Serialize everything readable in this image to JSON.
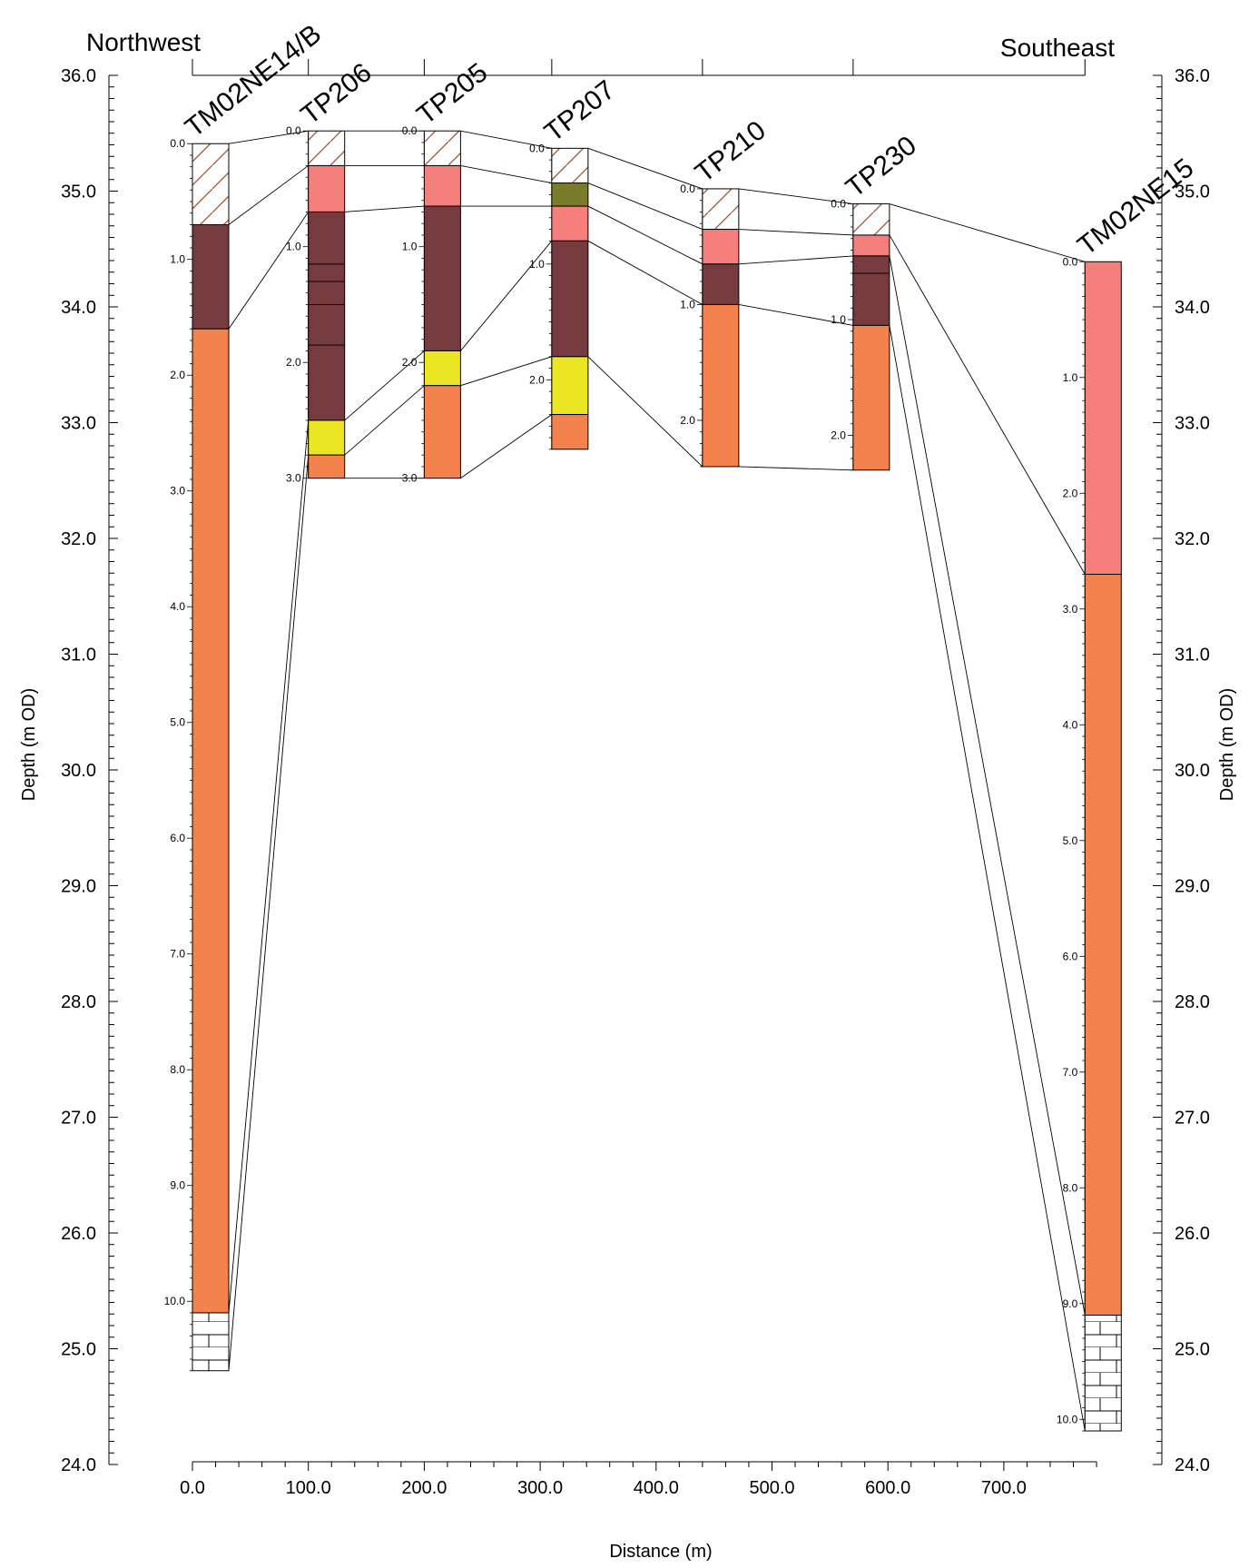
{
  "chart_data": {
    "type": "borehole-cross-section",
    "direction_left": "Northwest",
    "direction_right": "Southeast",
    "y_axis_label": "Depth (m OD)",
    "y_range": [
      24.0,
      36.0
    ],
    "y_ticks": [
      "36.0",
      "35.0",
      "34.0",
      "33.0",
      "32.0",
      "31.0",
      "30.0",
      "29.0",
      "28.0",
      "27.0",
      "26.0",
      "25.0",
      "24.0"
    ],
    "x_axis_label": "Distance (m)",
    "x_range": [
      0,
      780
    ],
    "x_ticks": [
      "0.0",
      "100.0",
      "200.0",
      "300.0",
      "400.0",
      "500.0",
      "600.0",
      "700.0"
    ],
    "colors": {
      "made_ground_hatch": "#a0522d",
      "pink": "#f47f7c",
      "maroon": "#763b3e",
      "orange": "#f4824c",
      "yellow": "#eae624",
      "olive": "#7b7b2c",
      "chalk": "#ffffff"
    },
    "boreholes": [
      {
        "name": "TM02NE14/B",
        "distance": 0,
        "top_elev": 35.41,
        "depth_ticks": [
          "0.0",
          "1.0",
          "2.0",
          "3.0",
          "4.0",
          "5.0",
          "6.0",
          "7.0",
          "8.0",
          "9.0",
          "10.0"
        ],
        "layers": [
          {
            "from": 0.0,
            "to": 0.7,
            "fill": "hatch"
          },
          {
            "from": 0.7,
            "to": 1.6,
            "fill": "maroon"
          },
          {
            "from": 1.6,
            "to": 10.1,
            "fill": "orange"
          },
          {
            "from": 10.1,
            "to": 10.6,
            "fill": "chalk"
          }
        ]
      },
      {
        "name": "TP206",
        "distance": 100,
        "top_elev": 35.52,
        "depth_ticks": [
          "0.0",
          "1.0",
          "2.0",
          "3.0"
        ],
        "layers": [
          {
            "from": 0.0,
            "to": 0.3,
            "fill": "hatch"
          },
          {
            "from": 0.3,
            "to": 0.7,
            "fill": "pink"
          },
          {
            "from": 0.7,
            "to": 2.5,
            "fill": "maroon",
            "sublines": [
              1.15,
              1.3,
              1.5,
              1.85
            ]
          },
          {
            "from": 2.5,
            "to": 2.8,
            "fill": "yellow"
          },
          {
            "from": 2.8,
            "to": 3.0,
            "fill": "orange"
          }
        ]
      },
      {
        "name": "TP205",
        "distance": 200,
        "top_elev": 35.52,
        "depth_ticks": [
          "0.0",
          "1.0",
          "2.0",
          "3.0"
        ],
        "layers": [
          {
            "from": 0.0,
            "to": 0.3,
            "fill": "hatch"
          },
          {
            "from": 0.3,
            "to": 0.65,
            "fill": "pink"
          },
          {
            "from": 0.65,
            "to": 1.9,
            "fill": "maroon"
          },
          {
            "from": 1.9,
            "to": 2.2,
            "fill": "yellow"
          },
          {
            "from": 2.2,
            "to": 3.0,
            "fill": "orange"
          }
        ]
      },
      {
        "name": "TP207",
        "distance": 310,
        "top_elev": 35.37,
        "depth_ticks": [
          "0.0",
          "1.0",
          "2.0"
        ],
        "layers": [
          {
            "from": 0.0,
            "to": 0.3,
            "fill": "hatch"
          },
          {
            "from": 0.3,
            "to": 0.5,
            "fill": "olive"
          },
          {
            "from": 0.5,
            "to": 0.8,
            "fill": "pink"
          },
          {
            "from": 0.8,
            "to": 1.8,
            "fill": "maroon"
          },
          {
            "from": 1.8,
            "to": 2.3,
            "fill": "yellow"
          },
          {
            "from": 2.3,
            "to": 2.6,
            "fill": "orange"
          }
        ]
      },
      {
        "name": "TP210",
        "distance": 440,
        "top_elev": 35.02,
        "depth_ticks": [
          "0.0",
          "1.0",
          "2.0"
        ],
        "layers": [
          {
            "from": 0.0,
            "to": 0.35,
            "fill": "hatch"
          },
          {
            "from": 0.35,
            "to": 0.65,
            "fill": "pink"
          },
          {
            "from": 0.65,
            "to": 1.0,
            "fill": "maroon"
          },
          {
            "from": 1.0,
            "to": 2.4,
            "fill": "orange"
          }
        ]
      },
      {
        "name": "TP230",
        "distance": 570,
        "top_elev": 34.89,
        "depth_ticks": [
          "0.0",
          "1.0",
          "2.0"
        ],
        "layers": [
          {
            "from": 0.0,
            "to": 0.27,
            "fill": "hatch"
          },
          {
            "from": 0.27,
            "to": 0.45,
            "fill": "pink"
          },
          {
            "from": 0.45,
            "to": 1.05,
            "fill": "maroon",
            "sublines": [
              0.6
            ]
          },
          {
            "from": 1.05,
            "to": 2.3,
            "fill": "orange"
          }
        ]
      },
      {
        "name": "TM02NE15",
        "distance": 770,
        "top_elev": 34.39,
        "depth_ticks": [
          "0.0",
          "1.0",
          "2.0",
          "3.0",
          "4.0",
          "5.0",
          "6.0",
          "7.0",
          "8.0",
          "9.0",
          "10.0"
        ],
        "layers": [
          {
            "from": 0.0,
            "to": 2.7,
            "fill": "pink"
          },
          {
            "from": 2.7,
            "to": 9.1,
            "fill": "orange"
          },
          {
            "from": 9.1,
            "to": 10.1,
            "fill": "chalk"
          }
        ]
      }
    ]
  }
}
